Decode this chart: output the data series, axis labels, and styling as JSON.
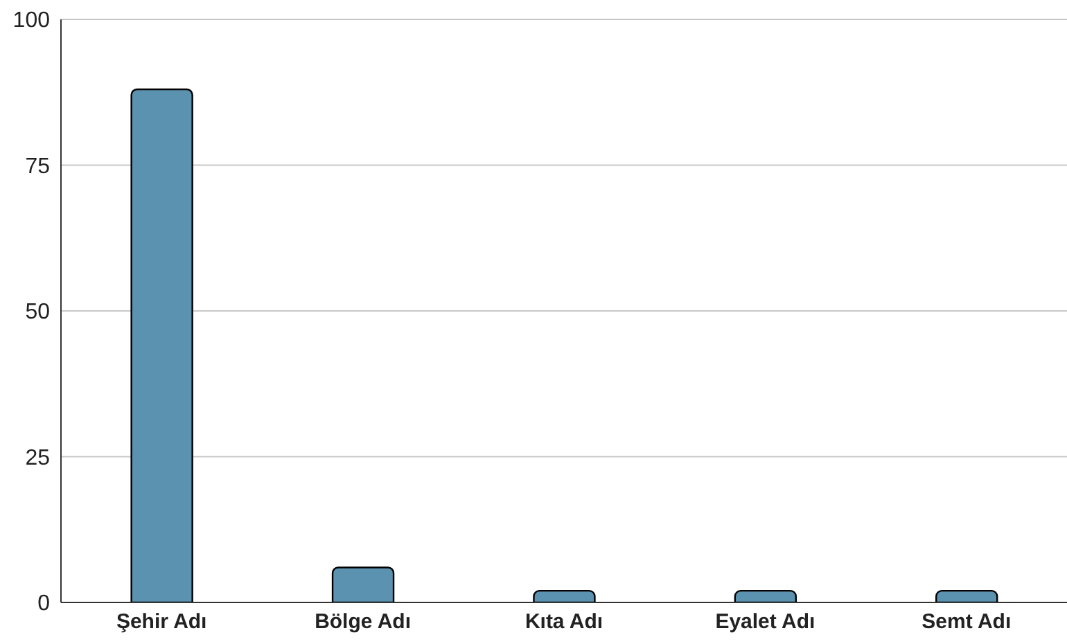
{
  "chart_data": {
    "type": "bar",
    "categories": [
      "Şehir Adı",
      "Bölge Adı",
      "Kıta Adı",
      "Eyalet Adı",
      "Semt Adı"
    ],
    "values": [
      88,
      6,
      2,
      2,
      2
    ],
    "color": "#5b92b0",
    "ylim": [
      0,
      100
    ],
    "yticks": [
      0,
      25,
      50,
      75,
      100
    ],
    "grid": "y"
  }
}
